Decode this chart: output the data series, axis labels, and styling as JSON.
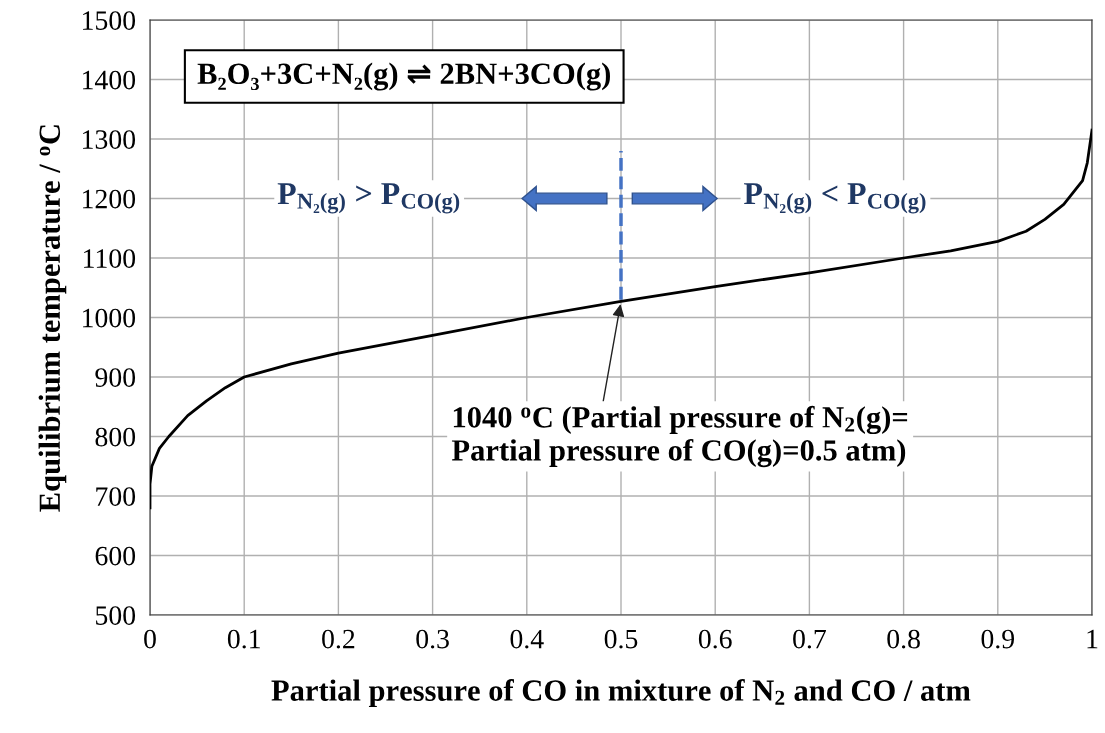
{
  "chart_data": {
    "type": "line",
    "xlabel": "Partial pressure of CO in mixture of N$_{2}$ and CO / atm",
    "ylabel": "Equilibrium temperature / $^{o}$C",
    "x": [
      0.0,
      0.0,
      0.002,
      0.01,
      0.02,
      0.04,
      0.06,
      0.08,
      0.1,
      0.15,
      0.2,
      0.3,
      0.4,
      0.5,
      0.6,
      0.7,
      0.8,
      0.85,
      0.9,
      0.93,
      0.95,
      0.97,
      0.99,
      0.995,
      1.0
    ],
    "series": [
      {
        "color": "#000000",
        "values": [
          680,
          720,
          750,
          780,
          800,
          835,
          860,
          882,
          900,
          922,
          940,
          970,
          1000,
          1027,
          1052,
          1075,
          1100,
          1112,
          1128,
          1145,
          1165,
          1190,
          1230,
          1260,
          1315
        ]
      }
    ],
    "xlim": [
      0,
      1
    ],
    "xticks": [
      0,
      0.1,
      0.2,
      0.3,
      0.4,
      0.5,
      0.6,
      0.7,
      0.8,
      0.9,
      1
    ],
    "ylim": [
      500,
      1500
    ],
    "yticks": [
      500,
      600,
      700,
      800,
      900,
      1000,
      1100,
      1200,
      1300,
      1400,
      1500
    ],
    "grid": true,
    "marker": "none",
    "line_style": "solid",
    "ref_lines": [
      {
        "axis": "x",
        "value": 0.5,
        "color": "#4472c4",
        "line_style": "dashed"
      }
    ],
    "annotations": [
      "B₂O₃+3C+N₂(g) ⇌ 2BN+3CO(g)",
      "P$_{N₂(g)}$ > P$_{CO(g)}$",
      "P$_{N₂(g)}$ < P$_{CO(g)}$",
      {
        "text": "1040 $^{o}$C (Partial pressure of N$_{2}$(g)=\nPartial pressure of CO(g)=0.5 atm)",
        "x": 0.5,
        "y": 1027
      }
    ]
  }
}
